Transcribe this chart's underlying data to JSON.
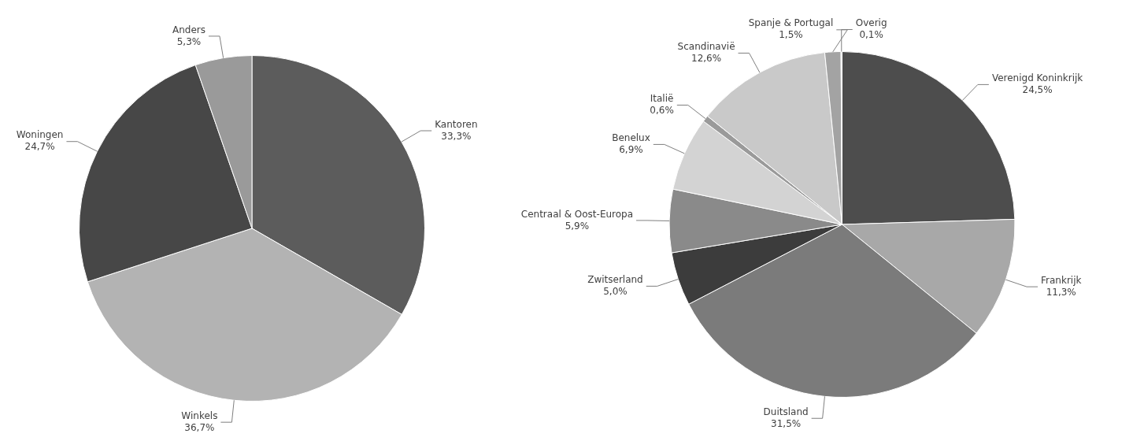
{
  "chart_data": [
    {
      "type": "pie",
      "categories": [
        "Kantoren",
        "Winkels",
        "Woningen",
        "Anders"
      ],
      "values": [
        33.3,
        36.7,
        24.7,
        5.3
      ],
      "value_labels": [
        "33,3%",
        "36,7%",
        "24,7%",
        "5,3%"
      ],
      "colors": [
        "#5c5c5c",
        "#b3b3b3",
        "#474747",
        "#9a9a9a"
      ],
      "legend": false
    },
    {
      "type": "pie",
      "categories": [
        "Verenigd Koninkrijk",
        "Frankrijk",
        "Duitsland",
        "Zwitserland",
        "Centraal & Oost-Europa",
        "Benelux",
        "Italië",
        "Scandinavië",
        "Spanje & Portugal",
        "Overig"
      ],
      "values": [
        24.5,
        11.3,
        31.5,
        5.0,
        5.9,
        6.9,
        0.6,
        12.6,
        1.5,
        0.1
      ],
      "value_labels": [
        "24,5%",
        "11,3%",
        "31,5%",
        "5,0%",
        "5,9%",
        "6,9%",
        "0,6%",
        "12,6%",
        "1,5%",
        "0,1%"
      ],
      "colors": [
        "#4d4d4d",
        "#a8a8a8",
        "#7b7b7b",
        "#3c3c3c",
        "#8a8a8a",
        "#d3d3d3",
        "#9a9a9a",
        "#c9c9c9",
        "#a3a3a3",
        "#b0b0b0"
      ],
      "legend": false
    }
  ]
}
